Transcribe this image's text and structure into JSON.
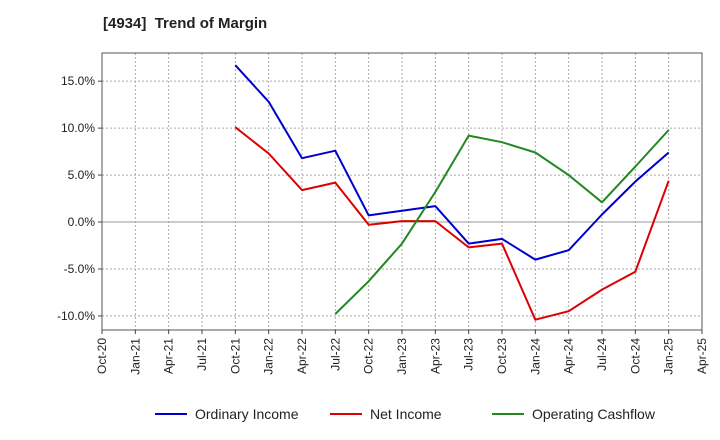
{
  "chart_data": {
    "type": "line",
    "title": "[4934]  Trend of Margin",
    "x": [
      "Oct-20",
      "Jan-21",
      "Apr-21",
      "Jul-21",
      "Oct-21",
      "Jan-22",
      "Apr-22",
      "Jul-22",
      "Oct-22",
      "Jan-23",
      "Apr-23",
      "Jul-23",
      "Oct-23",
      "Jan-24",
      "Apr-24",
      "Jul-24",
      "Oct-24",
      "Jan-25",
      "Apr-25"
    ],
    "ylim": [
      -11.5,
      18
    ],
    "yticks": [
      -10,
      -5,
      0,
      5,
      10,
      15
    ],
    "ytick_labels": [
      "-10.0%",
      "-5.0%",
      "0.0%",
      "5.0%",
      "10.0%",
      "15.0%"
    ],
    "grid": true,
    "legend_position": "bottom",
    "series": [
      {
        "name": "Ordinary Income",
        "color": "#0000cc",
        "values": [
          null,
          null,
          null,
          null,
          16.7,
          12.8,
          6.8,
          7.6,
          0.7,
          1.2,
          1.7,
          -2.3,
          -1.8,
          -4.0,
          -3.0,
          0.8,
          4.3,
          7.4,
          null
        ]
      },
      {
        "name": "Net Income",
        "color": "#dd0000",
        "values": [
          null,
          null,
          null,
          null,
          10.1,
          7.3,
          3.4,
          4.2,
          -0.3,
          0.1,
          0.1,
          -2.7,
          -2.3,
          -10.4,
          -9.5,
          -7.2,
          -5.3,
          4.4,
          null
        ]
      },
      {
        "name": "Operating Cashflow",
        "color": "#228822",
        "values": [
          null,
          null,
          null,
          null,
          null,
          null,
          null,
          -9.8,
          -6.3,
          -2.3,
          3.2,
          9.2,
          8.5,
          7.4,
          5.0,
          2.1,
          5.9,
          9.8,
          null
        ]
      }
    ]
  }
}
